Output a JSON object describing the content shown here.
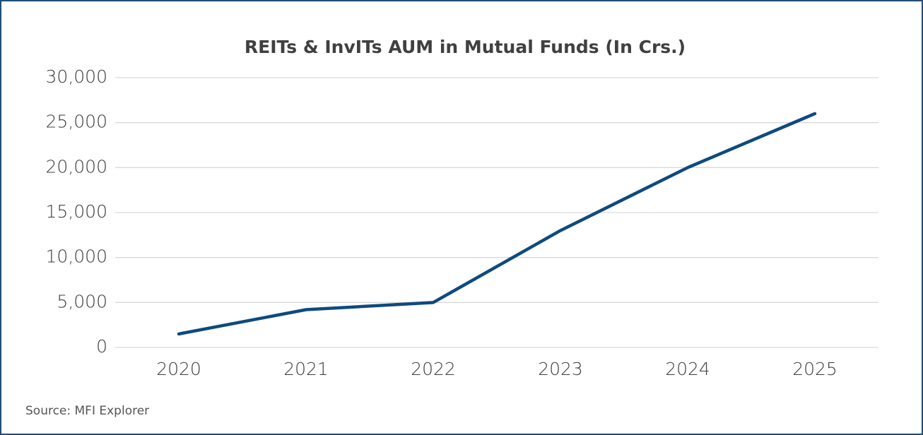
{
  "chart_data": {
    "type": "line",
    "title": "REITs & InvITs AUM in Mutual Funds (In Crs.)",
    "categories": [
      "2020",
      "2021",
      "2022",
      "2023",
      "2024",
      "2025"
    ],
    "series": [
      {
        "name": "AUM",
        "color": "#0e4a7e",
        "values": [
          1500,
          4200,
          5000,
          13000,
          20000,
          26000
        ]
      }
    ],
    "ylim": [
      0,
      30000
    ],
    "yticks": [
      0,
      {
        "value": 5000,
        "label": "5,000"
      },
      {
        "value": 10000,
        "label": "10,000"
      },
      {
        "value": 15000,
        "label": "15,000"
      },
      {
        "value": 20000,
        "label": "20,000"
      },
      {
        "value": 25000,
        "label": "25,000"
      },
      {
        "value": 30000,
        "label": "30,000"
      }
    ],
    "grid": true,
    "source": "Source: MFI Explorer"
  }
}
